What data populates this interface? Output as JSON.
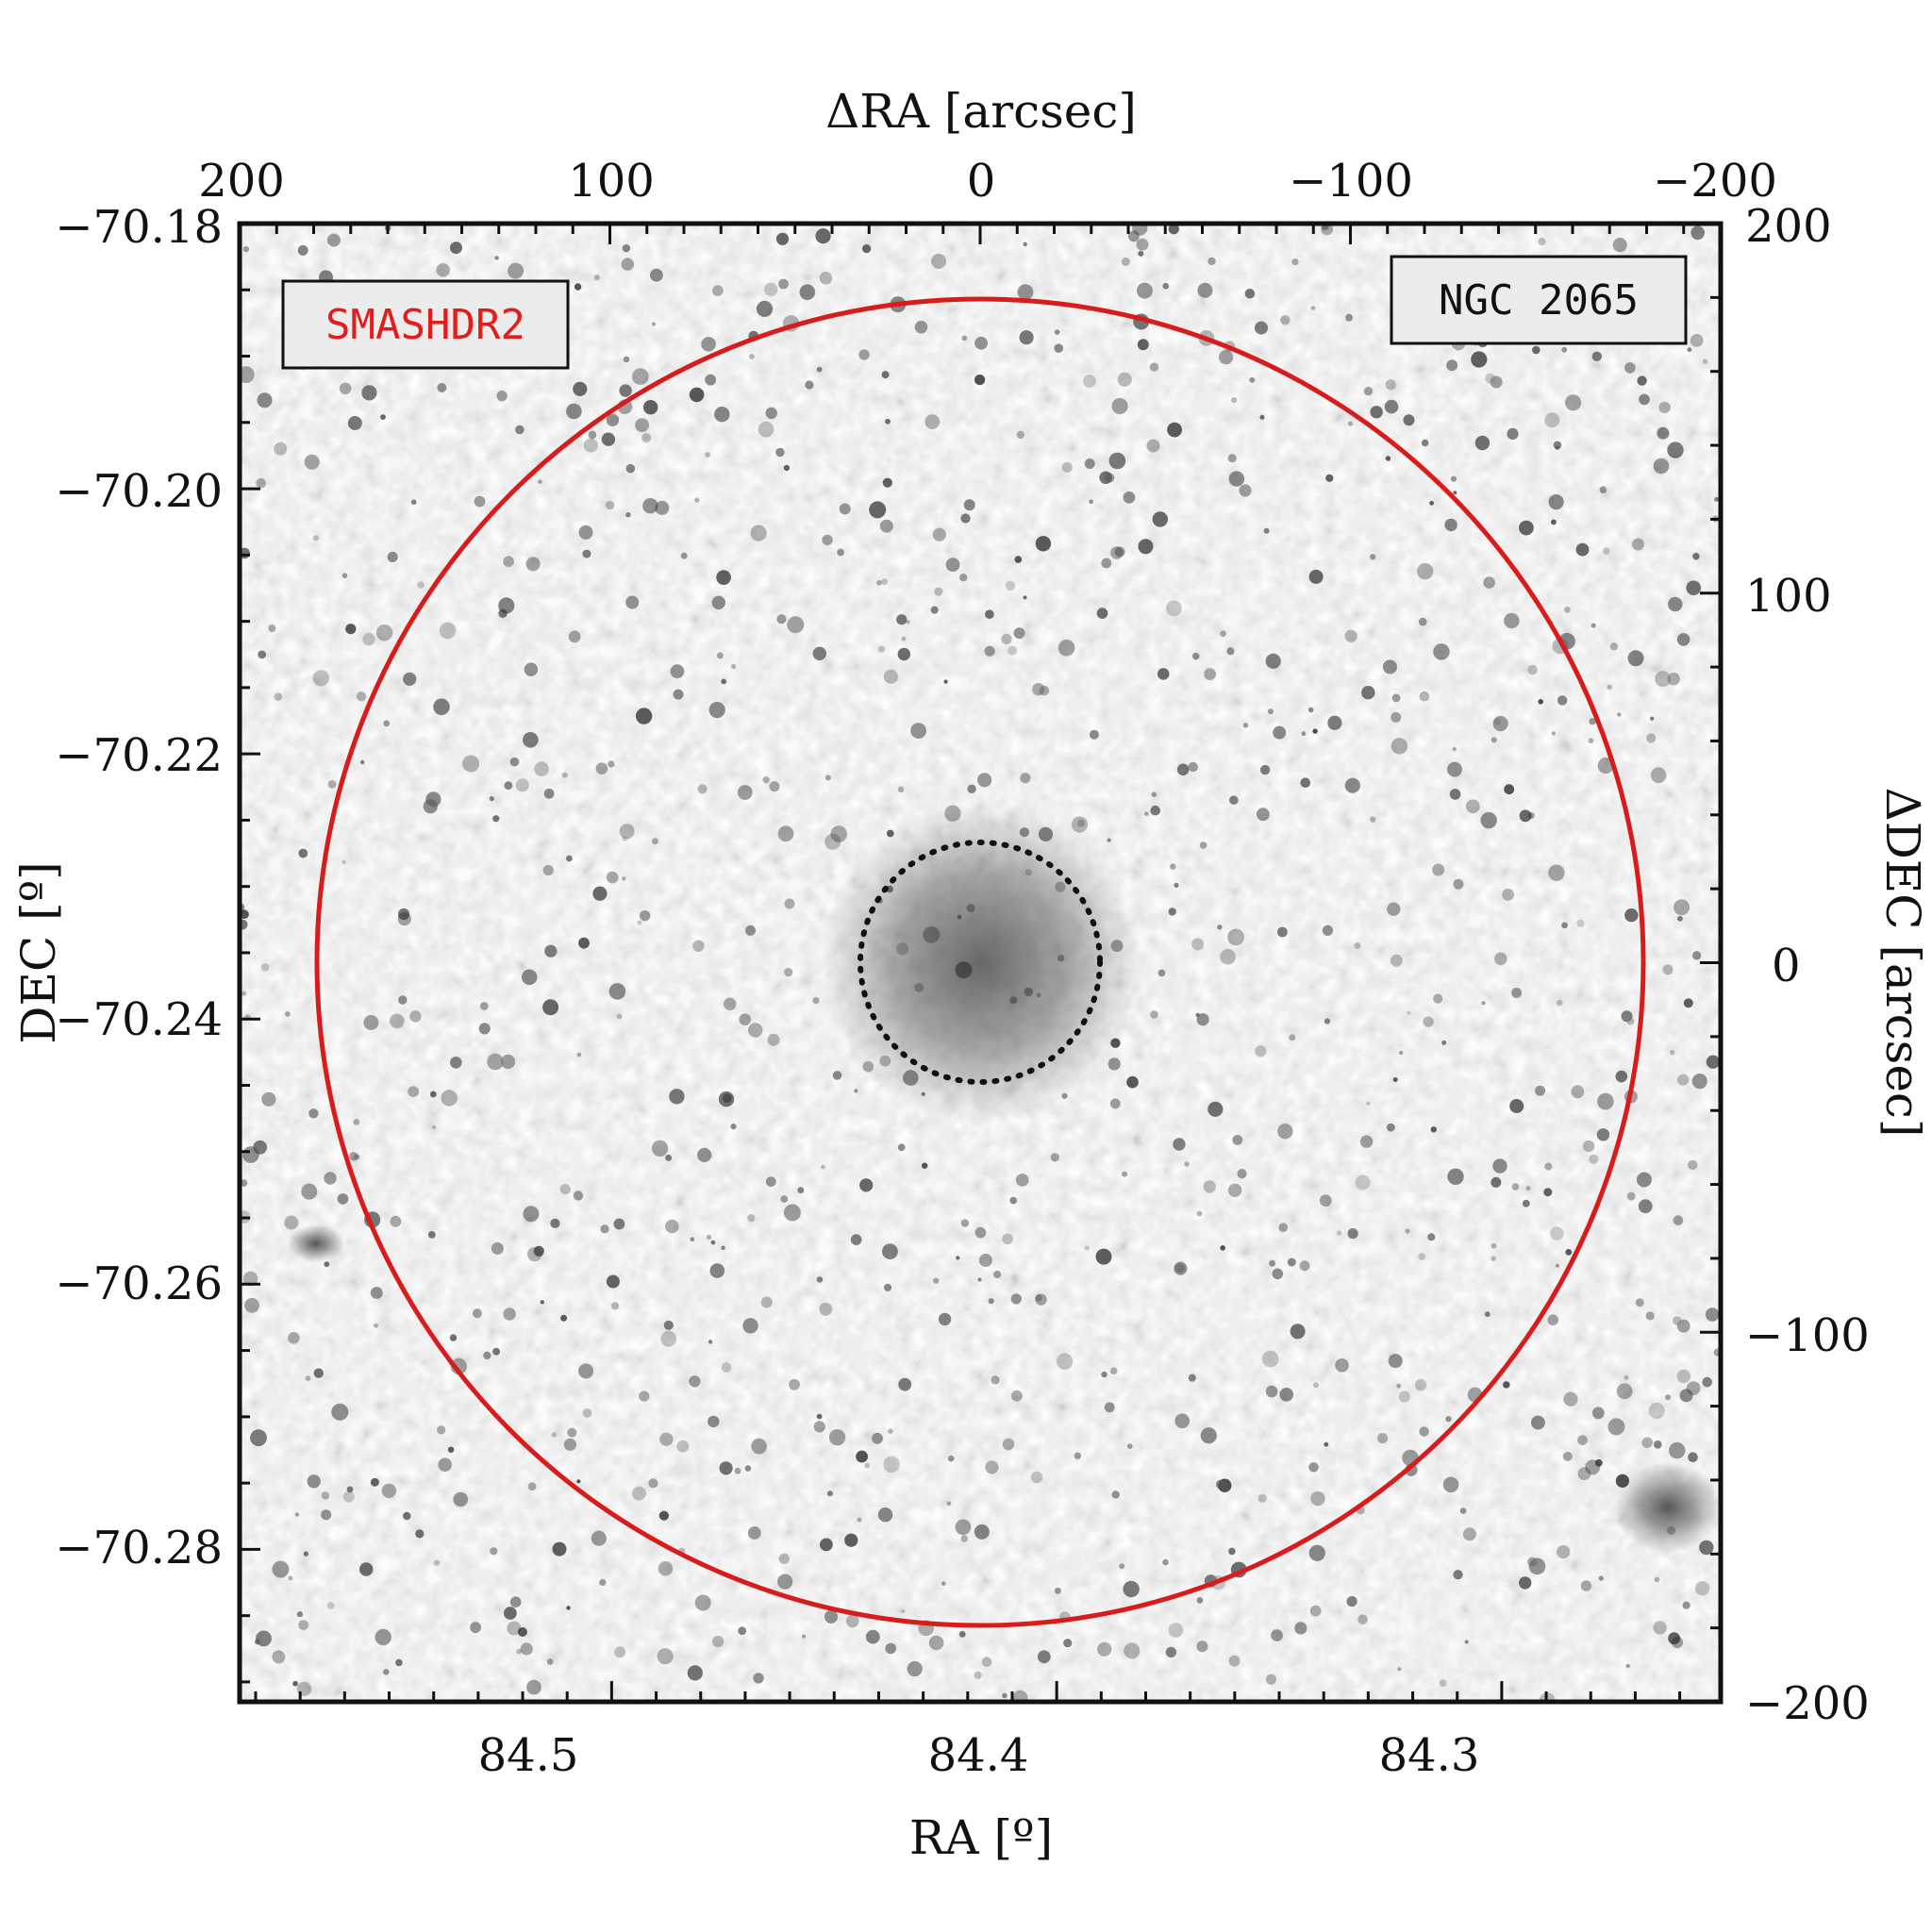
{
  "figure": {
    "axes": {
      "bottom": {
        "title": "RA [º]",
        "ticks": [
          {
            "value": 84.5,
            "label": "84.5"
          },
          {
            "value": 84.4,
            "label": "84.4"
          },
          {
            "value": 84.3,
            "label": "84.3"
          }
        ]
      },
      "left": {
        "title": "DEC [º]",
        "ticks": [
          {
            "value": -70.18,
            "label": "−70.18"
          },
          {
            "value": -70.2,
            "label": "−70.20"
          },
          {
            "value": -70.22,
            "label": "−70.22"
          },
          {
            "value": -70.24,
            "label": "−70.24"
          },
          {
            "value": -70.26,
            "label": "−70.26"
          },
          {
            "value": -70.28,
            "label": "−70.28"
          }
        ]
      },
      "top": {
        "title": "ΔRA [arcsec]",
        "ticks": [
          {
            "value": 200,
            "label": "200"
          },
          {
            "value": 100,
            "label": "100"
          },
          {
            "value": 0,
            "label": "0"
          },
          {
            "value": -100,
            "label": "−100"
          },
          {
            "value": -200,
            "label": "−200"
          }
        ]
      },
      "right": {
        "title": "ΔDEC [arcsec]",
        "ticks": [
          {
            "value": 200,
            "label": "200"
          },
          {
            "value": 100,
            "label": "100"
          },
          {
            "value": 0,
            "label": "0"
          },
          {
            "value": -100,
            "label": "−100"
          },
          {
            "value": -200,
            "label": "−200"
          }
        ]
      }
    },
    "survey_label": "SMASHDR2",
    "object_label": "NGC 2065",
    "colors": {
      "outer_circle": "#d81b1b",
      "survey_text": "#e11d1d",
      "inner_circle": "#111111",
      "frame": "#111111"
    }
  }
}
